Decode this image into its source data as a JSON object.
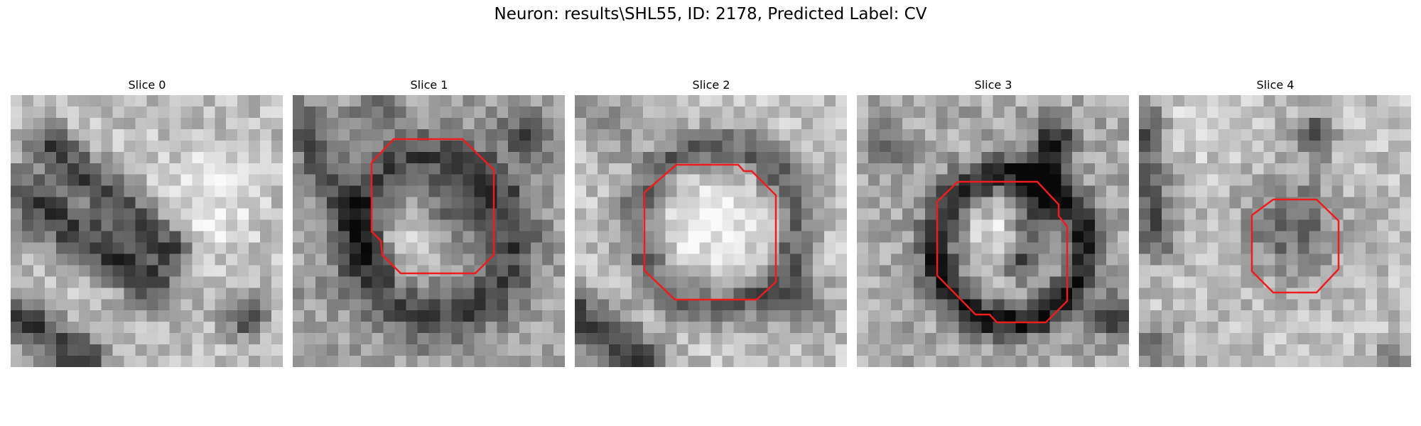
{
  "figure": {
    "title": "Neuron: results\\SHL55, ID: 2178, Predicted Label: CV"
  },
  "outline_color": "#ee1c1c",
  "grid_size": 24,
  "panels": [
    {
      "label": "Slice 0",
      "has_outline": false
    },
    {
      "label": "Slice 1",
      "has_outline": true
    },
    {
      "label": "Slice 2",
      "has_outline": true
    },
    {
      "label": "Slice 3",
      "has_outline": true
    },
    {
      "label": "Slice 4",
      "has_outline": true
    }
  ]
}
